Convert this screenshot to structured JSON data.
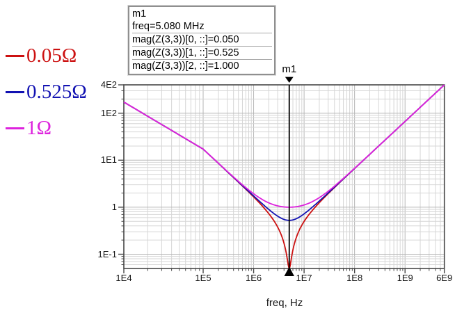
{
  "legend": {
    "items": [
      {
        "label": "0.05Ω",
        "color": "#cc1111"
      },
      {
        "label": "0.525Ω",
        "color": "#1212b2"
      },
      {
        "label": "1Ω",
        "color": "#dd22dd"
      }
    ]
  },
  "marker_box": {
    "lines": [
      "m1",
      "freq=5.080 MHz",
      "mag(Z(3,3))[0, ::]=0.050",
      "mag(Z(3,3))[1, ::]=0.525",
      "mag(Z(3,3))[2, ::]=1.000"
    ]
  },
  "marker": {
    "label": "m1",
    "freq_hz": 5080000,
    "freq_display": "5.080 MHz",
    "values": [
      0.05,
      0.525,
      1.0
    ]
  },
  "chart_data": {
    "type": "line",
    "title": "",
    "xlabel": "freq, Hz",
    "ylabel": "",
    "quantity": "mag(Z(3,3))",
    "grid": true,
    "legend_position": "left",
    "x_axis": {
      "scale": "log",
      "min_hz": 10000,
      "max_hz": 6000000000,
      "ticks": [
        {
          "label": "1E4",
          "value": 10000
        },
        {
          "label": "1E5",
          "value": 100000
        },
        {
          "label": "1E6",
          "value": 1000000
        },
        {
          "label": "1E7",
          "value": 10000000
        },
        {
          "label": "1E8",
          "value": 100000000
        },
        {
          "label": "1E9",
          "value": 1000000000
        },
        {
          "label": "6E9",
          "value": 6000000000
        }
      ]
    },
    "y_axis": {
      "scale": "log",
      "min": 0.05,
      "max": 400,
      "ticks": [
        {
          "label": "4E2",
          "value": 400
        },
        {
          "label": "1E2",
          "value": 100
        },
        {
          "label": "1E1",
          "value": 10
        },
        {
          "label": "1",
          "value": 1
        },
        {
          "label": "1E-1",
          "value": 0.1
        }
      ]
    },
    "model": {
      "kind": "series-RLC-impedance-magnitude",
      "resonance_hz": 5080000,
      "impedance_at_max_freq_ohm": 400
    },
    "marker_vertical_line_hz": 5080000,
    "series": [
      {
        "name": "0.05Ω",
        "color": "#cc1111",
        "resistance_ohm": 0.05,
        "points": [
          [
            10000,
            172
          ],
          [
            100000,
            17.2
          ],
          [
            1000000,
            1.65
          ],
          [
            2000000,
            0.73
          ],
          [
            5080000,
            0.05
          ],
          [
            10000000,
            0.5
          ],
          [
            20000000,
            1.25
          ],
          [
            100000000,
            6.65
          ],
          [
            1000000000,
            66.6
          ],
          [
            6000000000,
            400
          ]
        ]
      },
      {
        "name": "0.525Ω",
        "color": "#1212b2",
        "resistance_ohm": 0.525,
        "points": [
          [
            10000,
            172
          ],
          [
            100000,
            17.2
          ],
          [
            1000000,
            1.74
          ],
          [
            2000000,
            0.9
          ],
          [
            5080000,
            0.525
          ],
          [
            10000000,
            0.72
          ],
          [
            20000000,
            1.35
          ],
          [
            100000000,
            6.67
          ],
          [
            1000000000,
            66.6
          ],
          [
            6000000000,
            400
          ]
        ]
      },
      {
        "name": "1Ω",
        "color": "#dd22dd",
        "resistance_ohm": 1.0,
        "points": [
          [
            10000,
            172
          ],
          [
            100000,
            17.2
          ],
          [
            1000000,
            1.93
          ],
          [
            2000000,
            1.24
          ],
          [
            5080000,
            1.0
          ],
          [
            10000000,
            1.12
          ],
          [
            20000000,
            1.6
          ],
          [
            100000000,
            6.72
          ],
          [
            1000000000,
            66.6
          ],
          [
            6000000000,
            400
          ]
        ]
      }
    ]
  }
}
